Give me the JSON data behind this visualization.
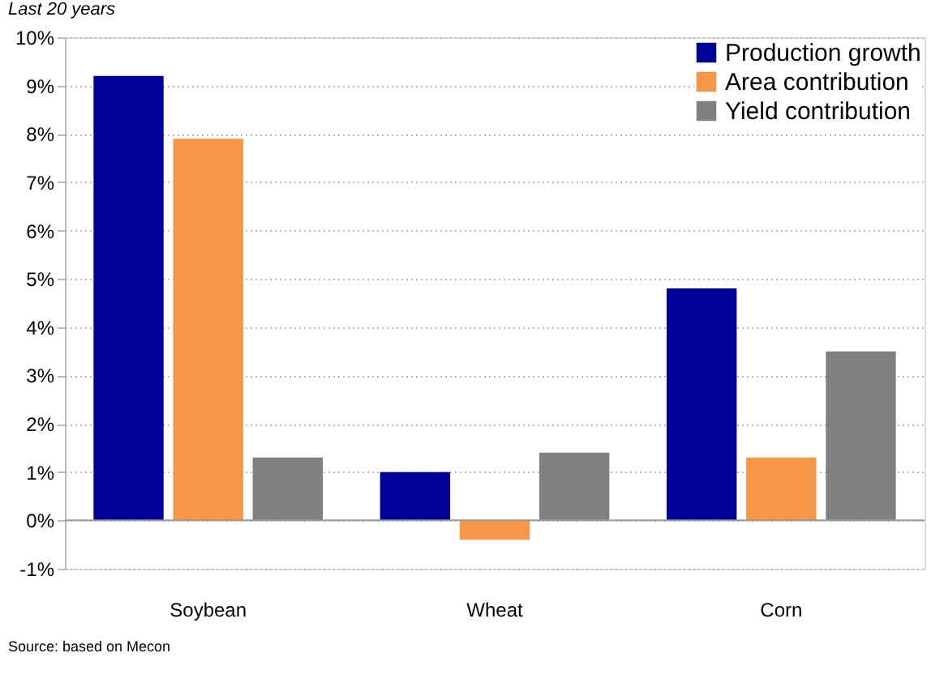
{
  "chart_data": {
    "type": "bar",
    "subtitle": "Last 20 years",
    "categories": [
      "Soybean",
      "Wheat",
      "Corn"
    ],
    "series": [
      {
        "name": "Production growth",
        "color": "#000099",
        "values": [
          9.2,
          1.0,
          4.8
        ]
      },
      {
        "name": "Area contribution",
        "color": "#f79646",
        "values": [
          7.9,
          -0.4,
          1.3
        ]
      },
      {
        "name": "Yield contribution",
        "color": "#808080",
        "values": [
          1.3,
          1.4,
          3.5
        ]
      }
    ],
    "ylim": [
      -1,
      10
    ],
    "yticks": [
      {
        "value": -1,
        "label": "-1%"
      },
      {
        "value": 0,
        "label": "0%"
      },
      {
        "value": 1,
        "label": "1%"
      },
      {
        "value": 2,
        "label": "2%"
      },
      {
        "value": 3,
        "label": "3%"
      },
      {
        "value": 4,
        "label": "4%"
      },
      {
        "value": 5,
        "label": "5%"
      },
      {
        "value": 6,
        "label": "6%"
      },
      {
        "value": 7,
        "label": "7%"
      },
      {
        "value": 8,
        "label": "8%"
      },
      {
        "value": 9,
        "label": "9%"
      },
      {
        "value": 10,
        "label": "10%"
      }
    ],
    "grid": "y",
    "legend": "top right",
    "annotations": [
      "Source: based on Mecon"
    ]
  }
}
